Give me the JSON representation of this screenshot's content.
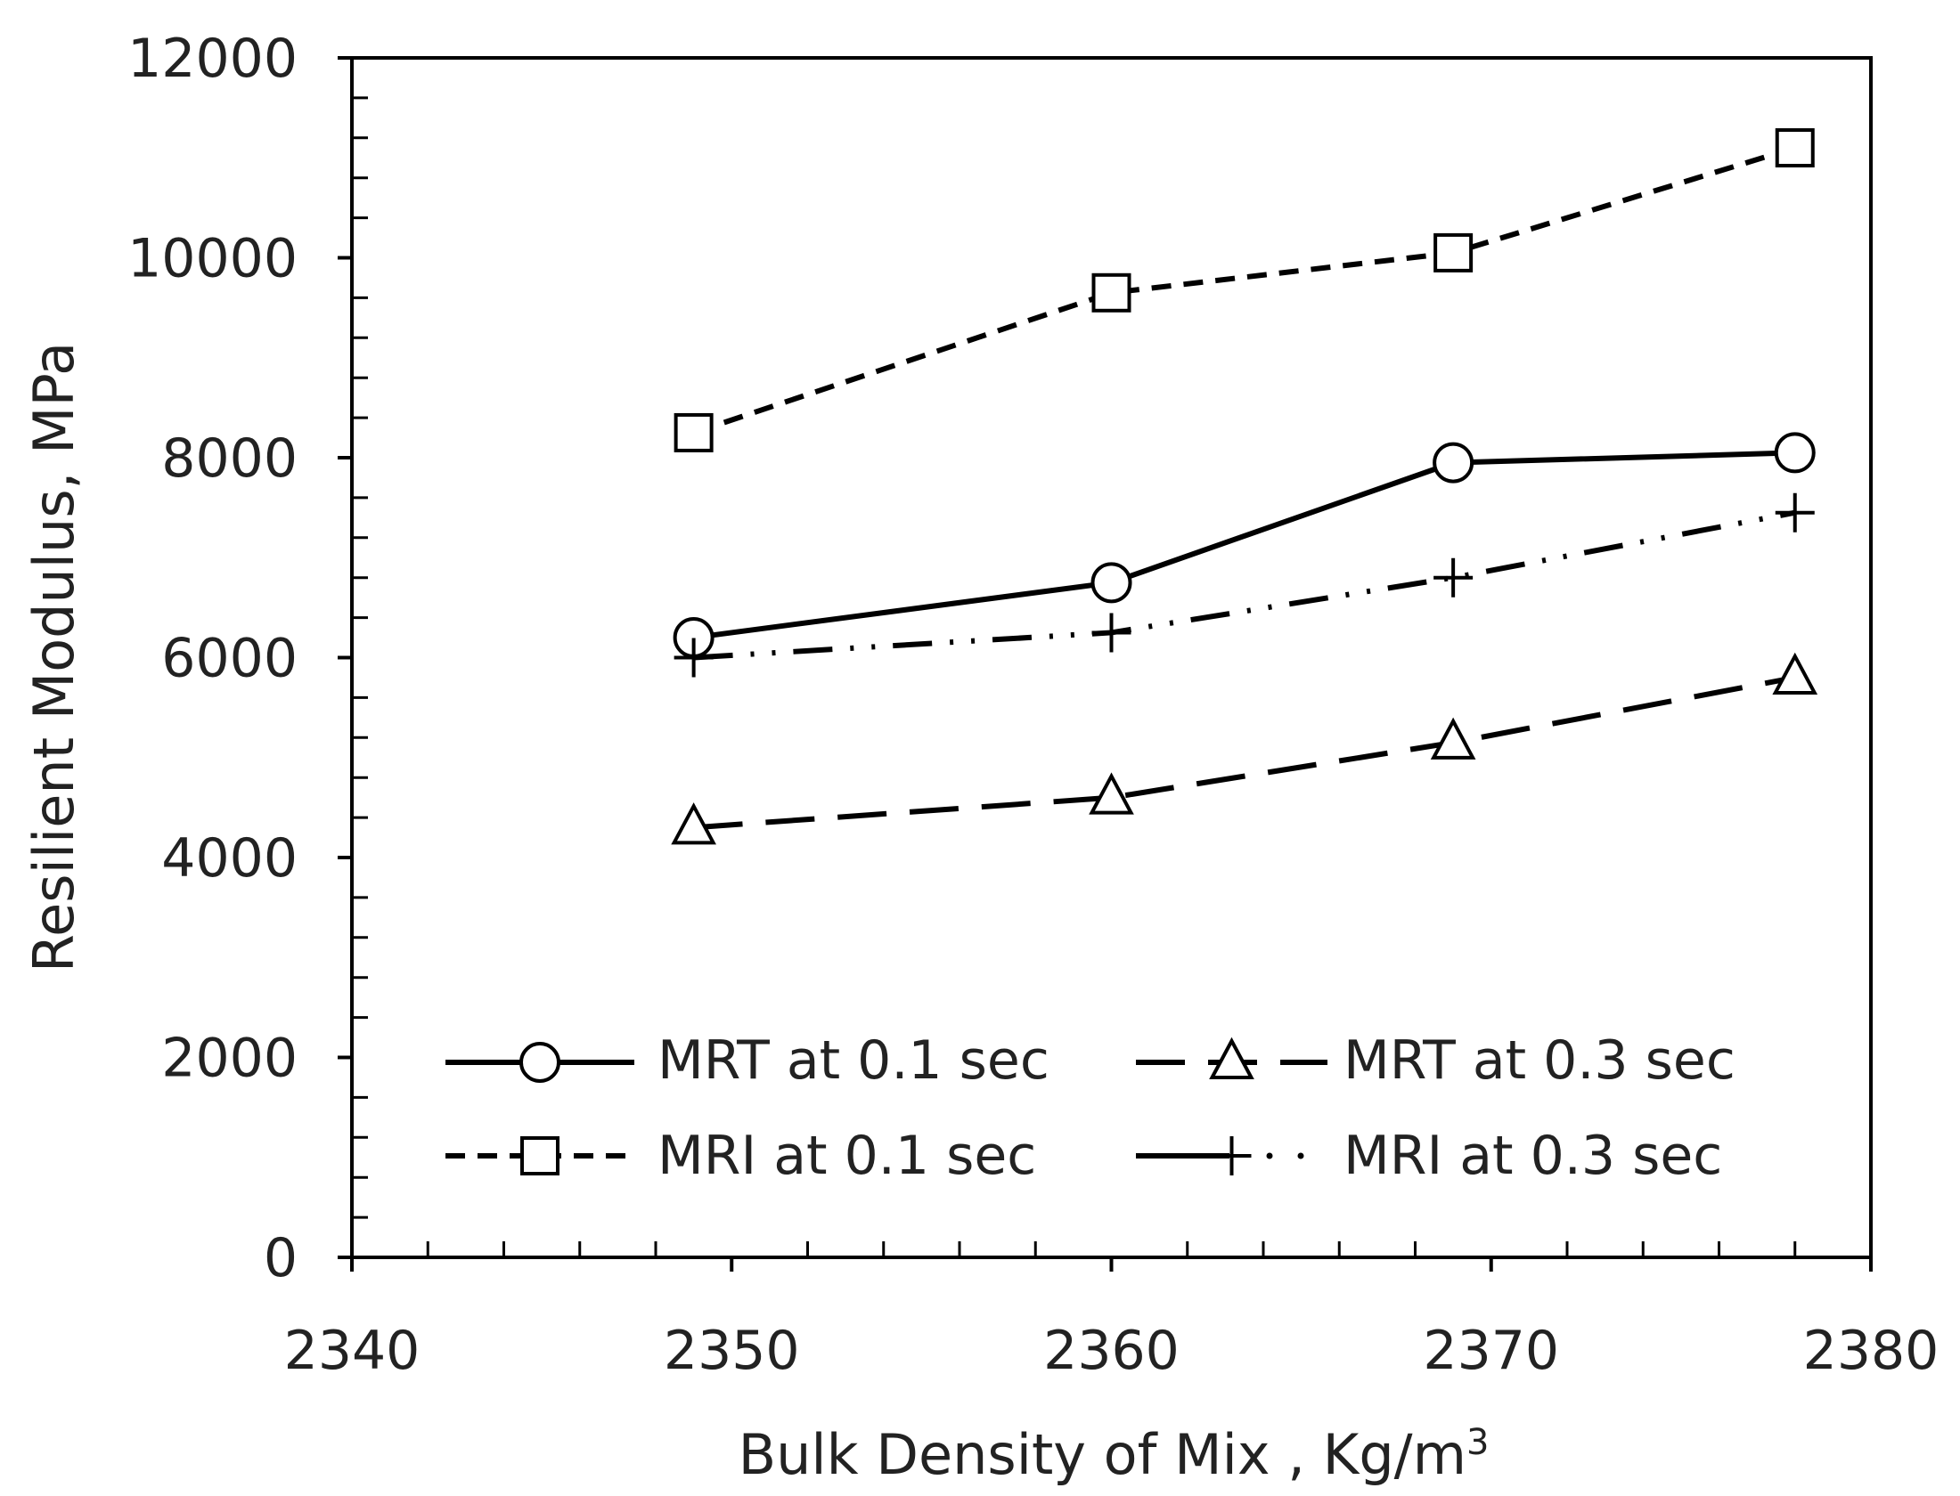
{
  "chart_data": {
    "type": "line",
    "title": "",
    "xlabel": "Bulk Density of Mix , Kg/m",
    "xlabel_superscript": "3",
    "ylabel": "Resilient Modulus, MPa",
    "xlim": [
      2340,
      2380
    ],
    "ylim": [
      0,
      12000
    ],
    "x_ticks": [
      2340,
      2350,
      2360,
      2370,
      2380
    ],
    "y_ticks": [
      0,
      2000,
      4000,
      6000,
      8000,
      10000,
      12000
    ],
    "x_minor_step": 2,
    "y_minor_step": 400,
    "grid": false,
    "legend_position": "lower-center",
    "x": [
      2349,
      2360,
      2369,
      2378
    ],
    "series": [
      {
        "name": "MRT at 0.1 sec",
        "values": [
          6200,
          6750,
          7950,
          8050
        ],
        "marker": "circle",
        "line_style": "solid"
      },
      {
        "name": "MRT at 0.3 sec",
        "values": [
          4300,
          4600,
          5150,
          5800
        ],
        "marker": "triangle",
        "line_style": "long-dash"
      },
      {
        "name": "MRI at 0.1 sec",
        "values": [
          8250,
          9650,
          10050,
          11100
        ],
        "marker": "square",
        "line_style": "short-dash"
      },
      {
        "name": "MRI at 0.3 sec",
        "values": [
          6000,
          6250,
          6800,
          7450
        ],
        "marker": "plus",
        "line_style": "dash-dot-dot"
      }
    ],
    "colors": {
      "line": "#000000",
      "text": "#222222",
      "background": "#ffffff"
    }
  }
}
